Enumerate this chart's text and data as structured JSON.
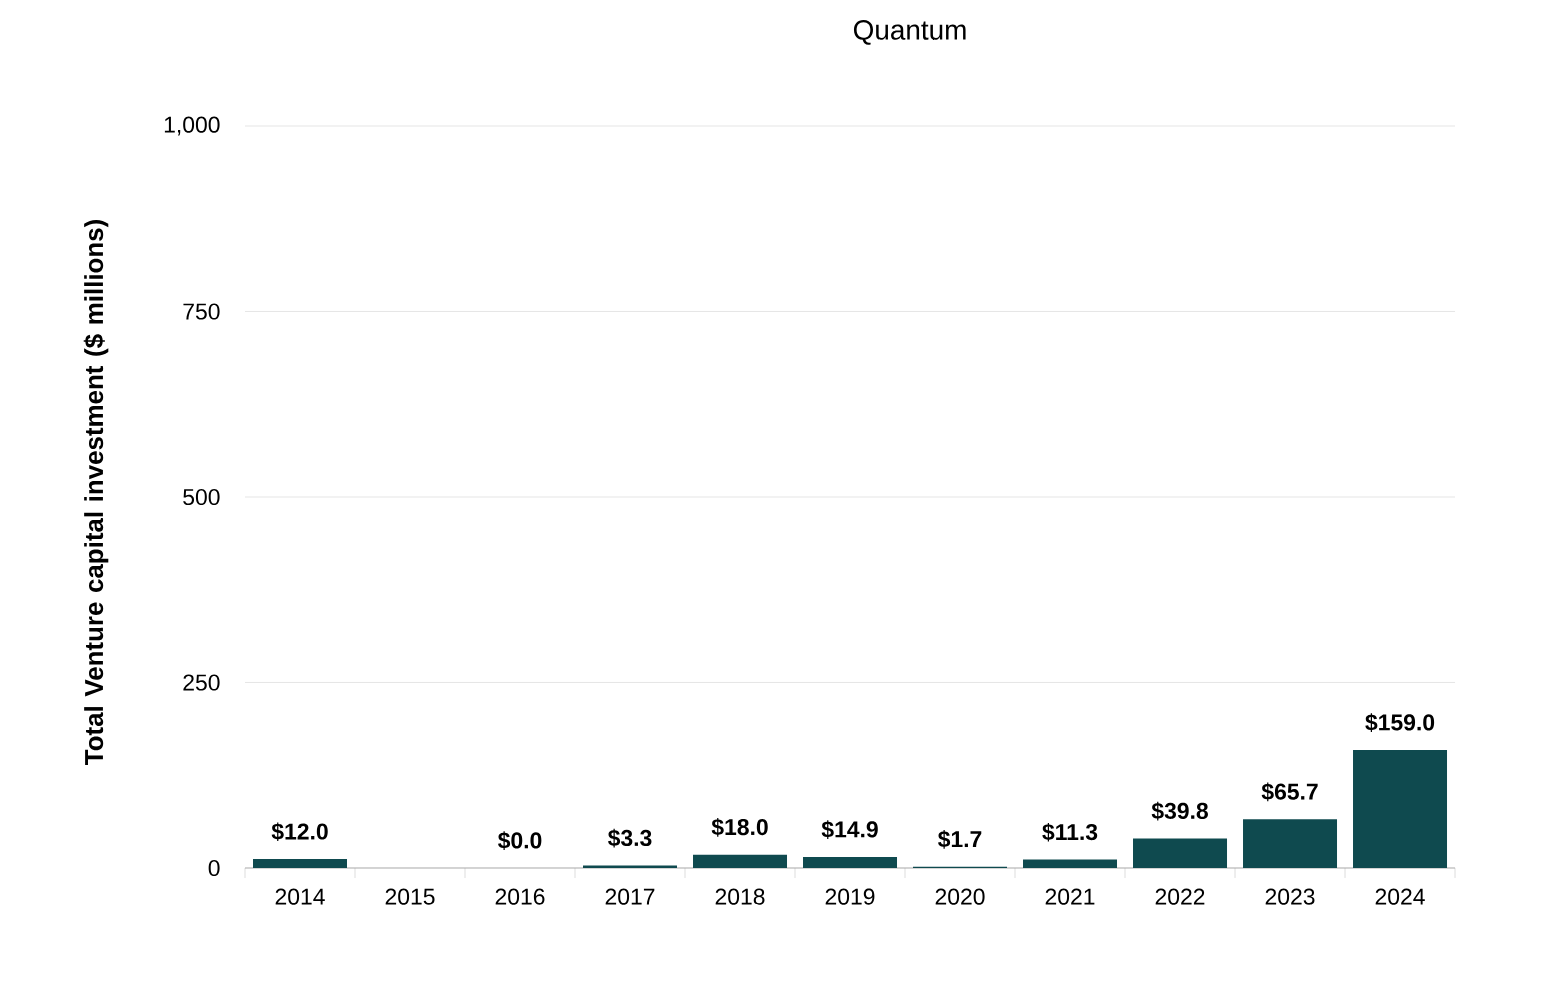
{
  "chart_data": {
    "type": "bar",
    "title": "Quantum",
    "ylabel": "Total Venture capital investment ($ millions)",
    "categories": [
      "2014",
      "2015",
      "2016",
      "2017",
      "2018",
      "2019",
      "2020",
      "2021",
      "2022",
      "2023",
      "2024"
    ],
    "values": [
      12.0,
      null,
      0.0,
      3.3,
      18.0,
      14.9,
      1.7,
      11.3,
      39.8,
      65.7,
      159.0
    ],
    "value_labels": [
      "$12.0",
      null,
      "$0.0",
      "$3.3",
      "$18.0",
      "$14.9",
      "$1.7",
      "$11.3",
      "$39.8",
      "$65.7",
      "$159.0"
    ],
    "color": "#0f4a4f",
    "ylim": [
      0,
      1000
    ],
    "yticks": [
      0,
      250,
      500,
      750,
      {
        "value": 1000,
        "label": "1,000"
      }
    ],
    "grid": "y"
  }
}
